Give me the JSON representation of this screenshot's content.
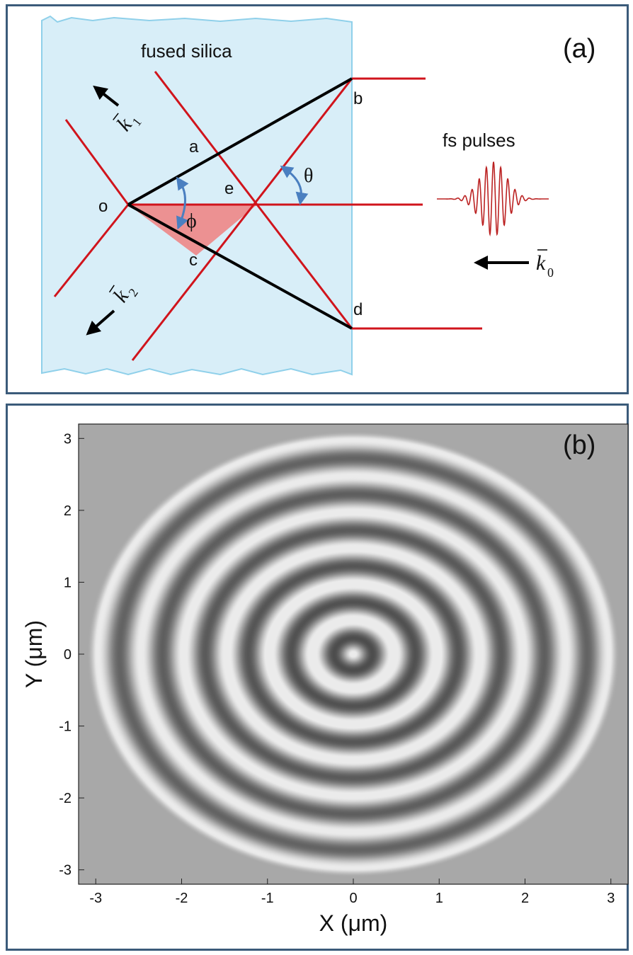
{
  "panel_a": {
    "panel_label": "(a)",
    "material_label": "fused silica",
    "pulse_label": "fs pulses",
    "points": {
      "o": "o",
      "a": "a",
      "b": "b",
      "c": "c",
      "d": "d",
      "e": "e"
    },
    "angle_theta": "θ",
    "angle_phi": "ϕ",
    "k1_symbol": "k",
    "k1_sub": "1",
    "k2_symbol": "k",
    "k2_sub": "2",
    "k0_symbol": "k",
    "k0_sub": "0",
    "colors": {
      "silica": "#d8eef8",
      "silica_edge": "#8fd0ea",
      "beam": "#d0141c",
      "prism": "#000000",
      "shade": "#f08080",
      "arrow_blue": "#4a7fc0"
    }
  },
  "panel_b": {
    "panel_label": "(b)",
    "chart_data": {
      "type": "heatmap",
      "description_visible": "concentric ring interference pattern",
      "xlabel": "X (μm)",
      "ylabel": "Y (μm)",
      "xlim": [
        -3.2,
        3.2
      ],
      "ylim": [
        -3.2,
        3.2
      ],
      "xticks": [
        -3,
        -2,
        -1,
        0,
        1,
        2,
        3
      ],
      "yticks": [
        3,
        2,
        1,
        0,
        -1,
        -2,
        -3
      ],
      "pattern_radius": 3.1,
      "ring_period": 0.5,
      "background_gray": "#a8a8a8"
    }
  }
}
